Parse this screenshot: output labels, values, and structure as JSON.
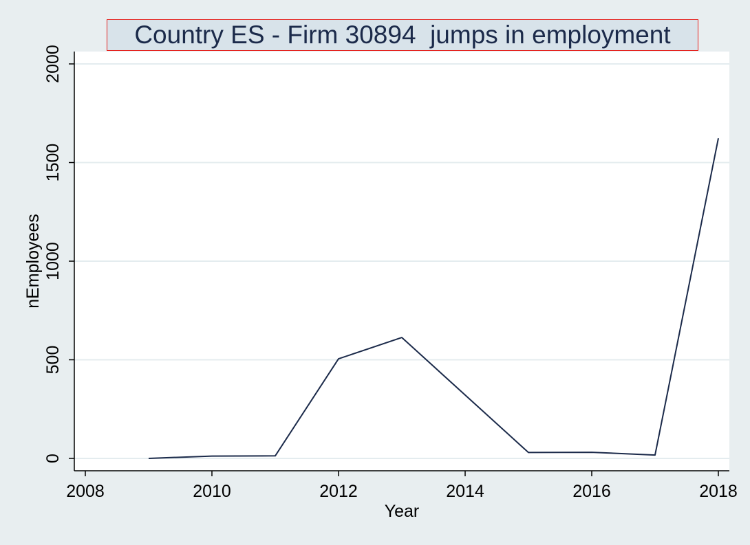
{
  "chart_data": {
    "type": "line",
    "title": "Country ES - Firm 30894  jumps in employment",
    "xlabel": "Year",
    "ylabel": "nEmployees",
    "x": [
      2009,
      2010,
      2011,
      2012,
      2013,
      2015,
      2016,
      2017,
      2018
    ],
    "series": [
      {
        "values": [
          0,
          12,
          13,
          505,
          613,
          30,
          31,
          17,
          1623
        ]
      }
    ],
    "xlim": [
      2008,
      2018
    ],
    "ylim": [
      0,
      2000
    ],
    "xticks": [
      "2008",
      "2010",
      "2012",
      "2014",
      "2016",
      "2018"
    ],
    "yticks": [
      "0",
      "500",
      "1000",
      "1500",
      "2000"
    ],
    "grid": true,
    "colors": {
      "background": "#e8eef0",
      "plot_background": "#ffffff",
      "line": "#1b2a4a",
      "grid": "#e4ecef",
      "title_border": "#e4201c",
      "title_fill": "#d8e3ea"
    }
  }
}
